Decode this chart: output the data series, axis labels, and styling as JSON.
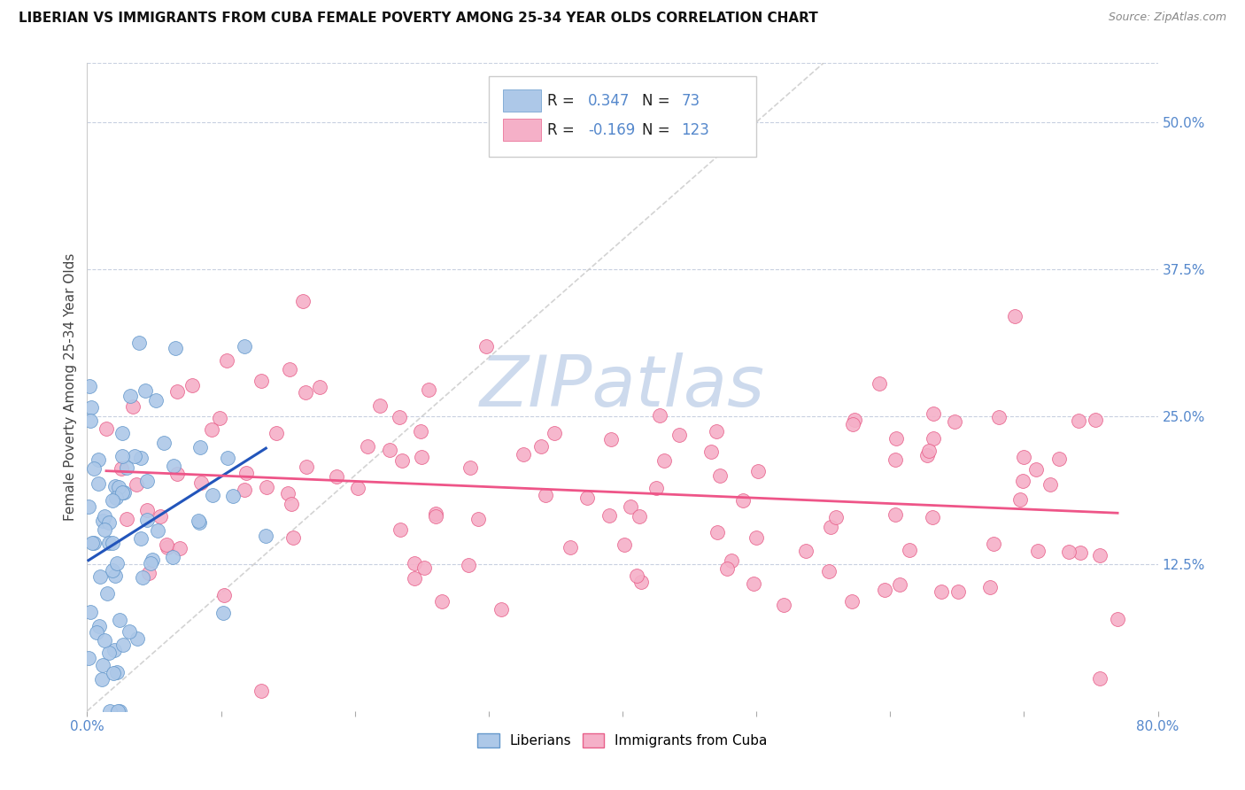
{
  "title": "LIBERIAN VS IMMIGRANTS FROM CUBA FEMALE POVERTY AMONG 25-34 YEAR OLDS CORRELATION CHART",
  "source": "Source: ZipAtlas.com",
  "ylabel": "Female Poverty Among 25-34 Year Olds",
  "ytick_labels": [
    "50.0%",
    "37.5%",
    "25.0%",
    "12.5%"
  ],
  "ytick_values": [
    0.5,
    0.375,
    0.25,
    0.125
  ],
  "xlim": [
    0.0,
    0.8
  ],
  "ylim": [
    0.0,
    0.55
  ],
  "liberian_R": 0.347,
  "liberian_N": 73,
  "cuba_R": -0.169,
  "cuba_N": 123,
  "liberian_color": "#adc8e8",
  "liberian_edge_color": "#6699cc",
  "cuba_color": "#f5b0c8",
  "cuba_edge_color": "#e8608a",
  "liberian_line_color": "#2255bb",
  "cuba_line_color": "#ee5588",
  "diagonal_color": "#c8c8c8",
  "bg_color": "#ffffff",
  "watermark_color": "#cddaed",
  "tick_color": "#5588cc",
  "title_color": "#111111",
  "source_color": "#888888",
  "ylabel_color": "#444444",
  "grid_color": "#c8d0e0"
}
